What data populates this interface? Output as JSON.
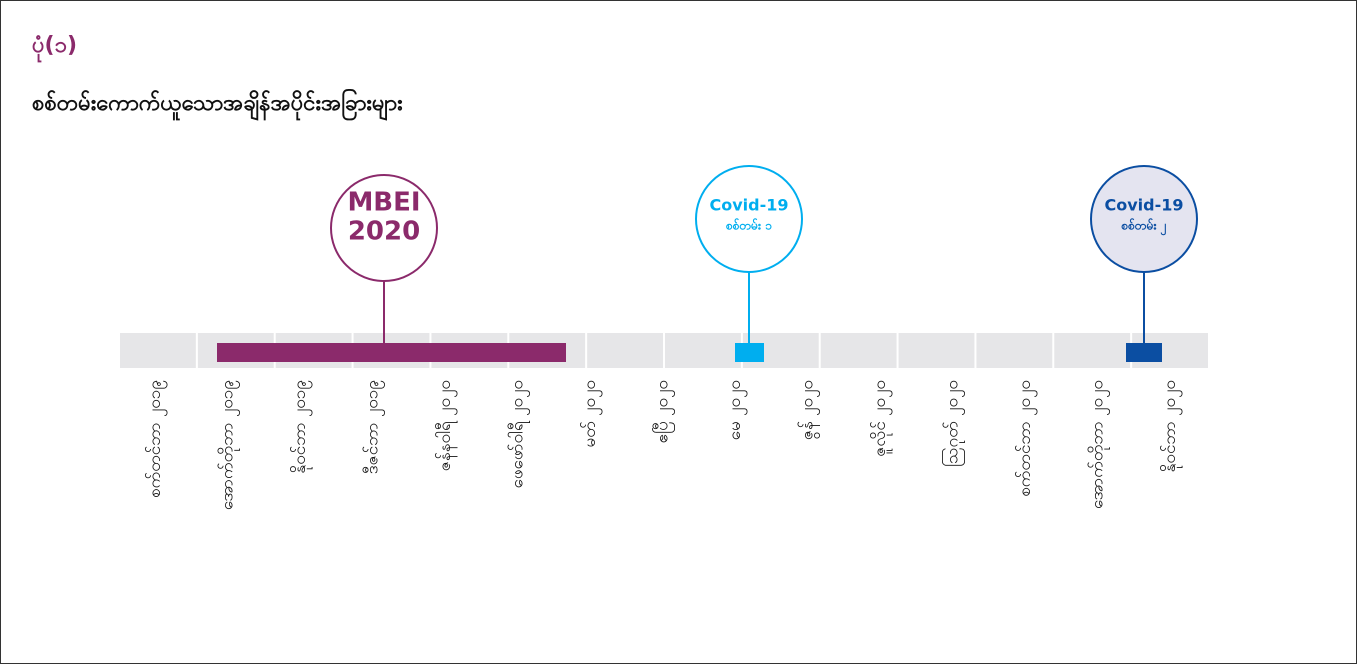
{
  "header": {
    "figure": "ပုံ(၁)",
    "title": "စစ်တမ်းကောက်ယူသောအချိန်အပိုင်းအခြားများ"
  },
  "events": [
    {
      "line1": "MBEI",
      "line2": "2020"
    },
    {
      "line1": "Covid-19",
      "line2": "စစ်တမ်း ၁"
    },
    {
      "line1": "Covid-19",
      "line2": "စစ်တမ်း ၂"
    }
  ],
  "months": [
    "စက်တင်ဘာ ၂၀၁၉",
    "အောက်တိုဘာ ၂၀၁၉",
    "နိုဝင်ဘာ ၂၀၁၉",
    "ဒီဇင်ဘာ ၂၀၁၉",
    "ဇန်နဝါရီ ၂၀၂၀",
    "ဖေဖော်ဝါရီ ၂၀၂၀",
    "မတ် ၂၀၂၀",
    "ဧပြီ ၂၀၂၀",
    "မေ ၂၀၂၀",
    "ဇွန် ၂၀၂၀",
    "ဇူလိုင် ၂၀၂၀",
    "ဩဂုတ် ၂၀၂၀",
    "စက်တင်ဘာ ၂၀၂၀",
    "အောက်တိုဘာ ၂၀၂၀",
    "နိုဝင်ဘာ ၂၀၂၀"
  ]
}
